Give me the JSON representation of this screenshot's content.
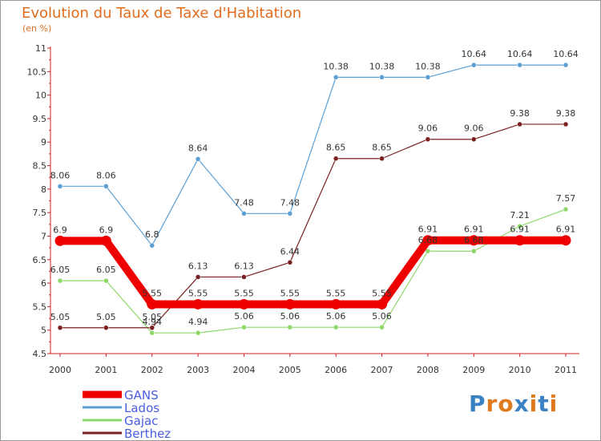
{
  "title": "Evolution du Taux de Taxe d'Habitation",
  "unit": "(en %)",
  "logo": {
    "text": "Proxiti",
    "letters": [
      "P",
      "r",
      "o",
      "x",
      "i",
      "t",
      "i"
    ],
    "colors": [
      "#3b82c4",
      "#e07a1f",
      "#e07a1f",
      "#3b82c4",
      "#e07a1f",
      "#3b82c4",
      "#e07a1f"
    ]
  },
  "chart_data": {
    "type": "line",
    "title": "Evolution du Taux de Taxe d'Habitation",
    "ylabel": "(en %)",
    "x": [
      "2000",
      "2001",
      "2002",
      "2003",
      "2004",
      "2005",
      "2006",
      "2007",
      "2008",
      "2009",
      "2010",
      "2011"
    ],
    "ylim": [
      4.5,
      11
    ],
    "yticks": [
      "4.5",
      "5",
      "5.5",
      "6",
      "6.5",
      "7",
      "7.5",
      "8",
      "8.5",
      "9",
      "9.5",
      "10",
      "10.5",
      "11"
    ],
    "grid": false,
    "legend": "bottom-left",
    "series": [
      {
        "name": "GANS",
        "color": "#ee0000",
        "width": 10,
        "values": [
          6.9,
          6.9,
          5.55,
          5.55,
          5.55,
          5.55,
          5.55,
          5.55,
          6.91,
          6.91,
          6.91,
          6.91
        ],
        "labels": [
          "6.9",
          "6.9",
          "5.55",
          "5.55",
          "5.55",
          "5.55",
          "5.55",
          "5.55",
          "6.91",
          "6.91",
          "6.91",
          "6.91"
        ]
      },
      {
        "name": "Lados",
        "color": "#5b9fd4",
        "width": 1.2,
        "values": [
          8.06,
          8.06,
          6.8,
          8.64,
          7.48,
          7.48,
          10.38,
          10.38,
          10.38,
          10.64,
          10.64,
          10.64
        ],
        "labels": [
          "8.06",
          "8.06",
          "6.8",
          "8.64",
          "7.48",
          "7.48",
          "10.38",
          "10.38",
          "10.38",
          "10.64",
          "10.64",
          "10.64"
        ]
      },
      {
        "name": "Gajac",
        "color": "#8ed86a",
        "width": 1.2,
        "values": [
          6.05,
          6.05,
          4.94,
          4.94,
          5.06,
          5.06,
          5.06,
          5.06,
          6.68,
          6.68,
          7.21,
          7.57
        ],
        "labels": [
          "6.05",
          "6.05",
          "4.94",
          "4.94",
          "5.06",
          "5.06",
          "5.06",
          "5.06",
          "6.68",
          "6.68",
          "7.21",
          "7.57"
        ]
      },
      {
        "name": "Berthez",
        "color": "#7a2020",
        "width": 1.2,
        "values": [
          5.05,
          5.05,
          5.05,
          6.13,
          6.13,
          6.44,
          8.65,
          8.65,
          9.06,
          9.06,
          9.38,
          9.38
        ],
        "labels": [
          "5.05",
          "5.05",
          "5.05",
          "6.13",
          "6.13",
          "6.44",
          "8.65",
          "8.65",
          "9.06",
          "9.06",
          "9.38",
          "9.38"
        ]
      }
    ]
  }
}
